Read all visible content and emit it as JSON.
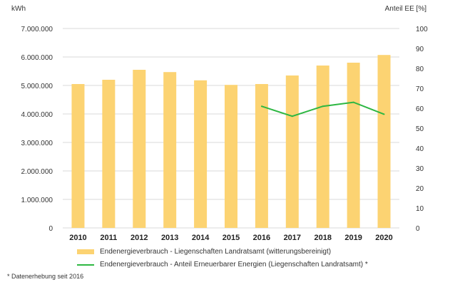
{
  "colors": {
    "bar": "#FCD372",
    "line": "#2DB742",
    "grid": "#d9d9d9"
  },
  "chart_data": {
    "type": "bar",
    "categories": [
      "2010",
      "2011",
      "2012",
      "2013",
      "2014",
      "2015",
      "2016",
      "2017",
      "2018",
      "2019",
      "2020"
    ],
    "y_left_label": "kWh",
    "y_right_label": "Anteil EE [%]",
    "y_left_ticks": [
      "0",
      "1.000.000",
      "2.000.000",
      "3.000.000",
      "4.000.000",
      "5.000.000",
      "6.000.000",
      "7.000.000"
    ],
    "y_right_ticks": [
      "0",
      "10",
      "20",
      "30",
      "40",
      "50",
      "60",
      "70",
      "80",
      "90",
      "100"
    ],
    "ylim_left": [
      0,
      7000000
    ],
    "ylim_right": [
      0,
      100
    ],
    "grid": true,
    "legend_position": "bottom",
    "series": [
      {
        "name": "Endenergieverbrauch - Liegenschaften Landratsamt (witterungsbereinigt)",
        "type": "bar",
        "axis": "left",
        "values": [
          5050000,
          5200000,
          5550000,
          5470000,
          5180000,
          5020000,
          5050000,
          5350000,
          5700000,
          5800000,
          6070000
        ]
      },
      {
        "name": "Endenergieverbrauch - Anteil Erneuerbarer Energien (Liegenschaften Landratsamt) *",
        "type": "line",
        "axis": "right",
        "x": [
          "2016",
          "2017",
          "2018",
          "2019",
          "2020"
        ],
        "values": [
          61,
          56,
          61,
          63,
          57
        ]
      }
    ]
  },
  "footnote": "* Datenerhebung seit 2016"
}
